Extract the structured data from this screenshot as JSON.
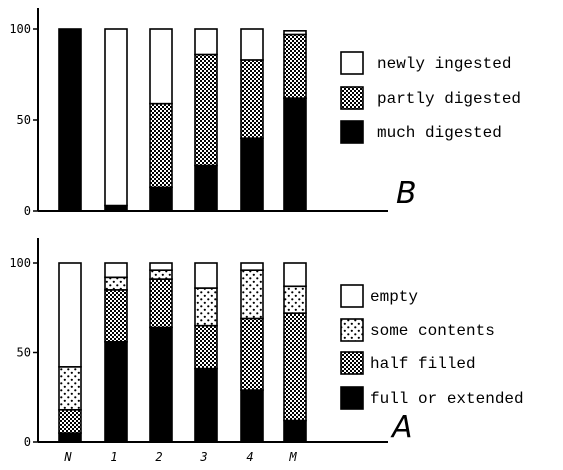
{
  "chart_data": [
    {
      "type": "bar",
      "stacked": true,
      "panel_label": "B",
      "categories": [
        "N",
        "1",
        "2",
        "3",
        "4",
        "M"
      ],
      "ylim": [
        0,
        100
      ],
      "yticks": [
        0,
        50,
        100
      ],
      "legend_position": "right",
      "series": [
        {
          "name": "much digested",
          "pattern": "solid-black",
          "values": [
            100,
            3,
            13,
            25,
            40,
            62
          ]
        },
        {
          "name": "partly digested",
          "pattern": "crosshatch",
          "values": [
            0,
            0,
            46,
            61,
            43,
            35
          ]
        },
        {
          "name": "newly ingested",
          "pattern": "white",
          "values": [
            0,
            97,
            41,
            14,
            17,
            2
          ]
        }
      ]
    },
    {
      "type": "bar",
      "stacked": true,
      "panel_label": "A",
      "categories": [
        "N",
        "1",
        "2",
        "3",
        "4",
        "M"
      ],
      "ylim": [
        0,
        100
      ],
      "yticks": [
        0,
        50,
        100
      ],
      "legend_position": "right",
      "series": [
        {
          "name": "full or extended",
          "pattern": "solid-black",
          "values": [
            5,
            56,
            64,
            41,
            29,
            12
          ]
        },
        {
          "name": "half filled",
          "pattern": "crosshatch",
          "values": [
            13,
            29,
            27,
            24,
            40,
            60
          ]
        },
        {
          "name": "some contents",
          "pattern": "dots",
          "values": [
            24,
            7,
            5,
            21,
            27,
            15
          ]
        },
        {
          "name": "empty",
          "pattern": "white",
          "values": [
            58,
            8,
            4,
            14,
            4,
            13
          ]
        }
      ]
    }
  ]
}
